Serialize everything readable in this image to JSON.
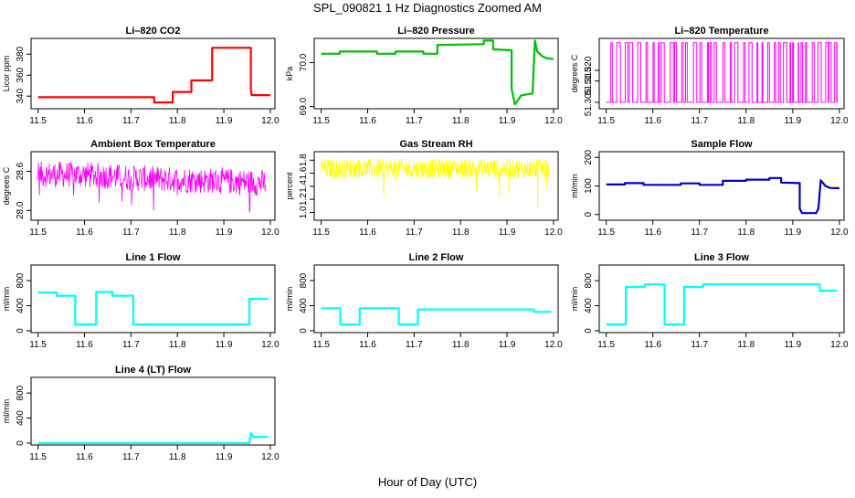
{
  "title": "SPL_090821  1 Hz Diagnostics Zoomed AM",
  "xlabel": "Hour of Day (UTC)",
  "chart_data": [
    {
      "type": "line",
      "title": "Li–820 CO2",
      "ylabel": "Licor ppm",
      "color": "#ff0000",
      "xlim": [
        11.485,
        12.01
      ],
      "ylim": [
        328,
        395
      ],
      "yticks": [
        "340",
        "360",
        "380"
      ],
      "xticks": [
        "11.5",
        "11.6",
        "11.7",
        "11.8",
        "11.9",
        "12.0"
      ],
      "series": [
        {
          "name": "CO2",
          "x": [
            11.5,
            11.75,
            11.75,
            11.79,
            11.79,
            11.83,
            11.83,
            11.875,
            11.875,
            11.958,
            11.958,
            11.96,
            12.0
          ],
          "values": [
            339,
            339,
            334,
            334,
            344,
            344,
            355,
            355,
            386,
            386,
            346,
            341,
            341
          ]
        }
      ]
    },
    {
      "type": "line",
      "title": "Li–820 Pressure",
      "ylabel": "kPa",
      "color": "#00c000",
      "xlim": [
        11.485,
        12.01
      ],
      "ylim": [
        68.95,
        70.55
      ],
      "yticks": [
        "69.0",
        "70.0"
      ],
      "xticks": [
        "11.5",
        "11.6",
        "11.7",
        "11.8",
        "11.9",
        "12.0"
      ],
      "series": [
        {
          "name": "Pressure",
          "x": [
            11.5,
            11.54,
            11.54,
            11.62,
            11.62,
            11.66,
            11.66,
            11.72,
            11.72,
            11.75,
            11.75,
            11.85,
            11.85,
            11.87,
            11.87,
            11.91,
            11.91,
            11.917,
            11.927,
            11.93,
            11.955,
            11.96,
            11.965,
            11.975,
            11.985,
            12.0
          ],
          "values": [
            70.2,
            70.2,
            70.25,
            70.25,
            70.2,
            70.2,
            70.25,
            70.25,
            70.2,
            70.2,
            70.4,
            70.42,
            70.5,
            70.5,
            70.3,
            70.28,
            69.4,
            69.05,
            69.2,
            69.25,
            69.3,
            70.5,
            70.25,
            70.15,
            70.1,
            70.08
          ]
        }
      ]
    },
    {
      "type": "line",
      "title": "Li–820 Temperature",
      "ylabel": "degrees C",
      "color": "#ff00ff",
      "xlim": [
        11.485,
        12.01
      ],
      "ylim": [
        51.302,
        51.335
      ],
      "yticks": [
        "51.305",
        "51.315",
        "51.320"
      ],
      "xticks": [
        "11.5",
        "11.6",
        "11.7",
        "11.8",
        "11.9",
        "12.0"
      ],
      "series": [
        {
          "name": "Temperature",
          "style": "bitflip",
          "base": 51.305,
          "level": 51.333,
          "x_range": [
            11.5,
            11.995
          ]
        }
      ]
    },
    {
      "type": "line",
      "title": "Ambient Box Temperature",
      "ylabel": "degrees C",
      "color": "#ff00ff",
      "xlim": [
        11.485,
        12.01
      ],
      "ylim": [
        27.85,
        28.9
      ],
      "yticks": [
        "28.0",
        "28.6"
      ],
      "xticks": [
        "11.5",
        "11.6",
        "11.7",
        "11.8",
        "11.9",
        "12.0"
      ],
      "series": [
        {
          "name": "Ambient",
          "style": "noisy",
          "x": [
            11.5,
            11.6,
            11.7,
            11.8,
            11.9,
            11.99
          ],
          "values": [
            28.55,
            28.55,
            28.5,
            28.47,
            28.45,
            28.42
          ],
          "noise": 0.2,
          "spike": 0.5
        }
      ]
    },
    {
      "type": "line",
      "title": "Gas Stream RH",
      "ylabel": "percent",
      "color": "#ffff00",
      "xlim": [
        11.485,
        12.01
      ],
      "ylim": [
        0.88,
        1.93
      ],
      "yticks": [
        "1.0",
        "1.2",
        "1.4",
        "1.6",
        "1.8"
      ],
      "xticks": [
        "11.5",
        "11.6",
        "11.7",
        "11.8",
        "11.9",
        "12.0"
      ],
      "series": [
        {
          "name": "RH",
          "style": "noisy",
          "x": [
            11.5,
            11.99
          ],
          "values": [
            1.67,
            1.67
          ],
          "noise": 0.15,
          "spike": 0.6
        }
      ]
    },
    {
      "type": "line",
      "title": "Sample Flow",
      "ylabel": "ml/min",
      "color": "#0000cc",
      "xlim": [
        11.485,
        12.01
      ],
      "ylim": [
        -20,
        220
      ],
      "yticks": [
        "0",
        "100",
        "200"
      ],
      "xticks": [
        "11.5",
        "11.6",
        "11.7",
        "11.8",
        "11.9",
        "12.0"
      ],
      "series": [
        {
          "name": "Sample Flow",
          "x": [
            11.5,
            11.54,
            11.54,
            11.58,
            11.58,
            11.66,
            11.66,
            11.7,
            11.7,
            11.75,
            11.75,
            11.8,
            11.8,
            11.85,
            11.85,
            11.875,
            11.875,
            11.915,
            11.915,
            11.92,
            11.95,
            11.955,
            11.96,
            11.97,
            11.98,
            12.0
          ],
          "values": [
            105,
            105,
            110,
            110,
            104,
            104,
            109,
            109,
            104,
            104,
            118,
            118,
            122,
            122,
            128,
            128,
            112,
            110,
            20,
            5,
            5,
            20,
            120,
            100,
            93,
            92
          ]
        }
      ]
    },
    {
      "type": "line",
      "title": "Line 1 Flow",
      "ylabel": "ml/min",
      "color": "#00ffff",
      "xlim": [
        11.485,
        12.01
      ],
      "ylim": [
        -30,
        1050
      ],
      "yticks": [
        "0",
        "400",
        "800"
      ],
      "xticks": [
        "11.5",
        "11.6",
        "11.7",
        "11.8",
        "11.9",
        "12.0"
      ],
      "series": [
        {
          "name": "Line 1",
          "x": [
            11.5,
            11.54,
            11.54,
            11.58,
            11.58,
            11.625,
            11.625,
            11.66,
            11.66,
            11.705,
            11.705,
            11.955,
            11.955,
            11.995
          ],
          "values": [
            610,
            610,
            560,
            560,
            100,
            100,
            620,
            620,
            560,
            560,
            100,
            100,
            510,
            510
          ]
        }
      ]
    },
    {
      "type": "line",
      "title": "Line 2 Flow",
      "ylabel": "ml/min",
      "color": "#00ffff",
      "xlim": [
        11.485,
        12.01
      ],
      "ylim": [
        -30,
        1050
      ],
      "yticks": [
        "0",
        "400",
        "800"
      ],
      "xticks": [
        "11.5",
        "11.6",
        "11.7",
        "11.8",
        "11.9",
        "12.0"
      ],
      "series": [
        {
          "name": "Line 2",
          "x": [
            11.5,
            11.541,
            11.541,
            11.583,
            11.583,
            11.667,
            11.667,
            11.708,
            11.708,
            11.958,
            11.958,
            11.995
          ],
          "values": [
            360,
            360,
            100,
            100,
            360,
            360,
            100,
            100,
            340,
            340,
            300,
            300
          ]
        }
      ]
    },
    {
      "type": "line",
      "title": "Line 3 Flow",
      "ylabel": "ml/min",
      "color": "#00ffff",
      "xlim": [
        11.485,
        12.01
      ],
      "ylim": [
        -30,
        1050
      ],
      "yticks": [
        "0",
        "400",
        "800"
      ],
      "xticks": [
        "11.5",
        "11.6",
        "11.7",
        "11.8",
        "11.9",
        "12.0"
      ],
      "series": [
        {
          "name": "Line 3",
          "x": [
            11.5,
            11.542,
            11.542,
            11.583,
            11.583,
            11.625,
            11.625,
            11.667,
            11.667,
            11.708,
            11.708,
            11.958,
            11.958,
            11.995
          ],
          "values": [
            100,
            100,
            700,
            700,
            740,
            740,
            100,
            100,
            700,
            700,
            740,
            740,
            640,
            640
          ]
        }
      ]
    },
    {
      "type": "line",
      "title": "Line 4 (LT) Flow",
      "ylabel": "ml/min",
      "color": "#00ffff",
      "xlim": [
        11.485,
        12.01
      ],
      "ylim": [
        -30,
        1050
      ],
      "yticks": [
        "0",
        "400",
        "800"
      ],
      "xticks": [
        "11.5",
        "11.6",
        "11.7",
        "11.8",
        "11.9",
        "12.0"
      ],
      "series": [
        {
          "name": "Line 4",
          "x": [
            11.5,
            11.955,
            11.958,
            11.965,
            11.975,
            11.995
          ],
          "values": [
            0,
            0,
            160,
            100,
            100,
            100
          ]
        }
      ]
    }
  ]
}
